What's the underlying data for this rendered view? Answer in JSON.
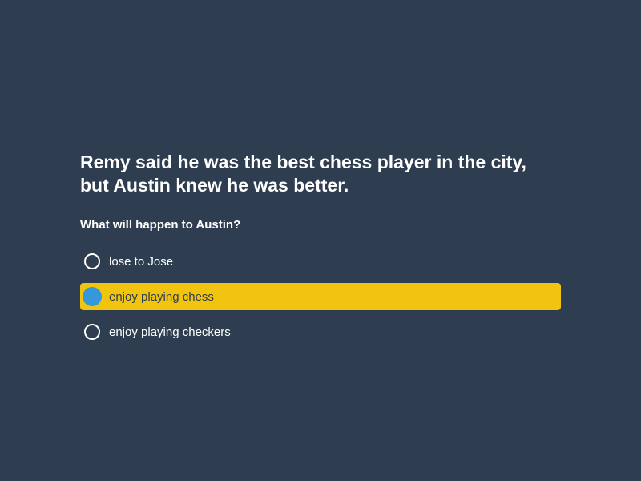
{
  "quiz": {
    "passage_line1": "Remy said he was the best chess player in the city,",
    "passage_line2": "but Austin knew he was better.",
    "question": "What will happen to Austin?",
    "options": [
      {
        "label": "lose to Jose",
        "selected": false
      },
      {
        "label": "enjoy playing chess",
        "selected": true
      },
      {
        "label": "enjoy playing checkers",
        "selected": false
      }
    ]
  },
  "colors": {
    "background": "#2e3d4f",
    "text": "#ffffff",
    "selected_background": "#f1c40f",
    "selected_radio": "#3498db"
  }
}
